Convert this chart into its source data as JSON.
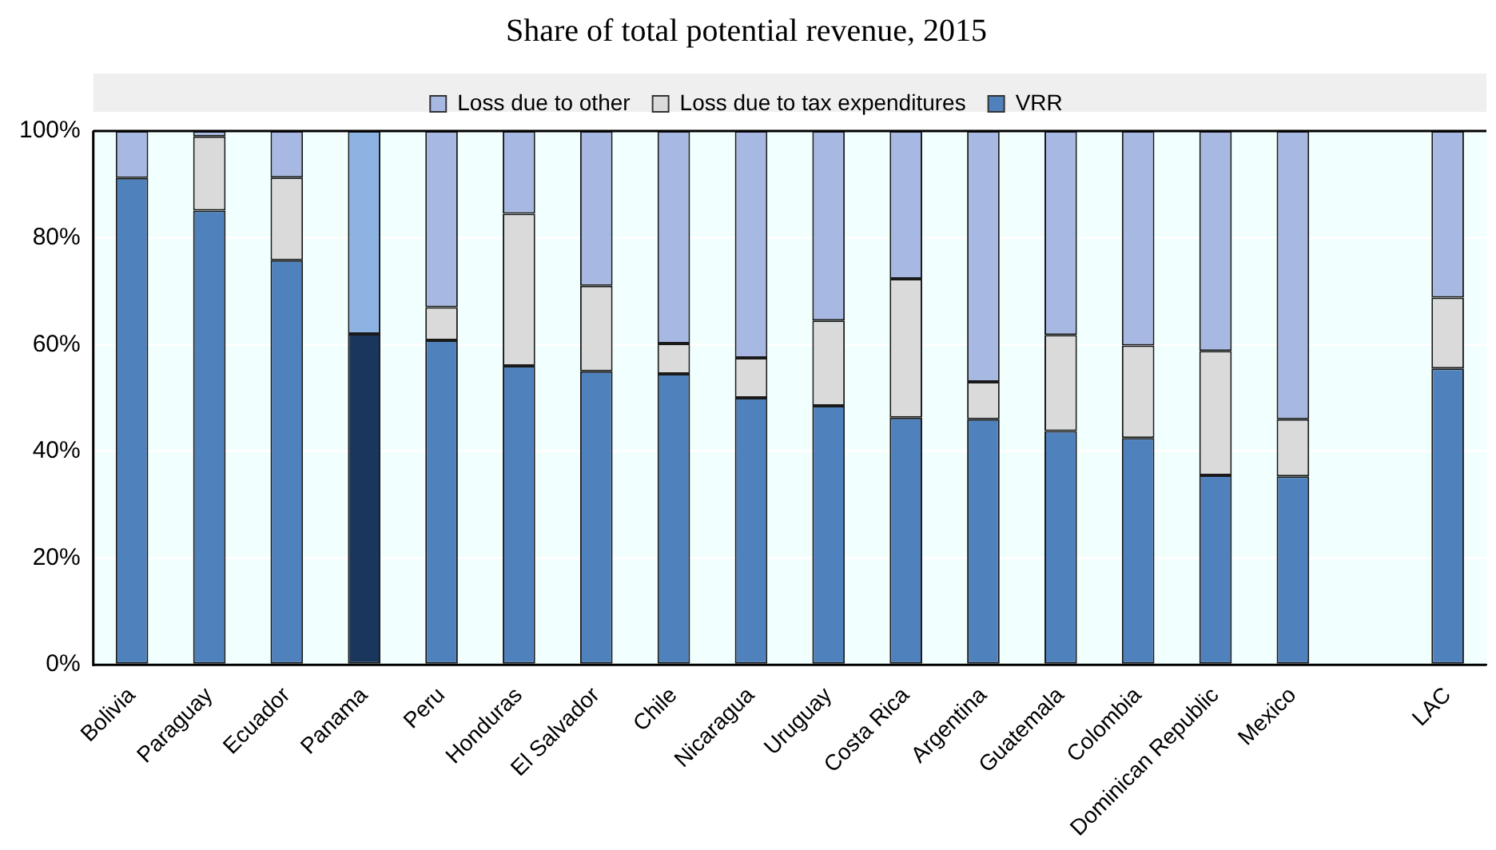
{
  "chart_data": {
    "type": "bar",
    "title": "Share of total potential revenue, 2015",
    "stacked": true,
    "legend": "top",
    "grid": "y",
    "categories": [
      "Bolivia",
      "Paraguay",
      "Ecuador",
      "Panama",
      "Peru",
      "Honduras",
      "El Salvador",
      "Chile",
      "Nicaragua",
      "Uruguay",
      "Costa Rica",
      "Argentina",
      "Guatemala",
      "Colombia",
      "Dominican Republic",
      "Mexico",
      null,
      "LAC"
    ],
    "series": [
      {
        "name": "VRR",
        "color": "#4f81bd",
        "colors": [
          "#4f81bd",
          "#4f81bd",
          "#4f81bd",
          "#1b365d",
          "#4f81bd",
          "#4f81bd",
          "#4f81bd",
          "#4f81bd",
          "#4f81bd",
          "#4f81bd",
          "#4f81bd",
          "#4f81bd",
          "#4f81bd",
          "#4f81bd",
          "#4f81bd",
          "#4f81bd",
          "#4f81bd",
          "#4f81bd"
        ],
        "values": [
          91.2,
          85.1,
          75.8,
          62.0,
          60.8,
          56.0,
          55.0,
          54.5,
          50.0,
          48.5,
          46.3,
          46.0,
          43.8,
          42.5,
          35.5,
          35.3,
          null,
          55.5
        ]
      },
      {
        "name": "Loss due to tax expenditures",
        "color": "#dadada",
        "values": [
          null,
          13.9,
          15.5,
          null,
          6.2,
          28.5,
          16.0,
          5.7,
          7.5,
          16.0,
          26.0,
          7.0,
          18.0,
          17.3,
          23.3,
          10.7,
          null,
          13.3
        ]
      },
      {
        "name": "Loss due to other",
        "color": "#a7b9e3",
        "colors": [
          "#a7b9e3",
          "#a7b9e3",
          "#a7b9e3",
          "#8db3e2",
          "#a7b9e3",
          "#a7b9e3",
          "#a7b9e3",
          "#a7b9e3",
          "#a7b9e3",
          "#a7b9e3",
          "#a7b9e3",
          "#a7b9e3",
          "#a7b9e3",
          "#a7b9e3",
          "#a7b9e3",
          "#a7b9e3",
          "#a7b9e3",
          "#a7b9e3"
        ],
        "values": [
          8.8,
          1.0,
          8.7,
          38.0,
          33.0,
          15.5,
          29.0,
          39.8,
          42.5,
          35.5,
          27.7,
          47.0,
          38.2,
          40.2,
          41.2,
          54.0,
          null,
          31.2
        ]
      }
    ],
    "ylim": [
      0,
      100
    ],
    "yticks": [
      {
        "value": 0,
        "label": "0%"
      },
      {
        "value": 20,
        "label": "20%"
      },
      {
        "value": 40,
        "label": "40%"
      },
      {
        "value": 60,
        "label": "60%"
      },
      {
        "value": 80,
        "label": "80%"
      },
      {
        "value": 100,
        "label": "100%"
      }
    ]
  }
}
